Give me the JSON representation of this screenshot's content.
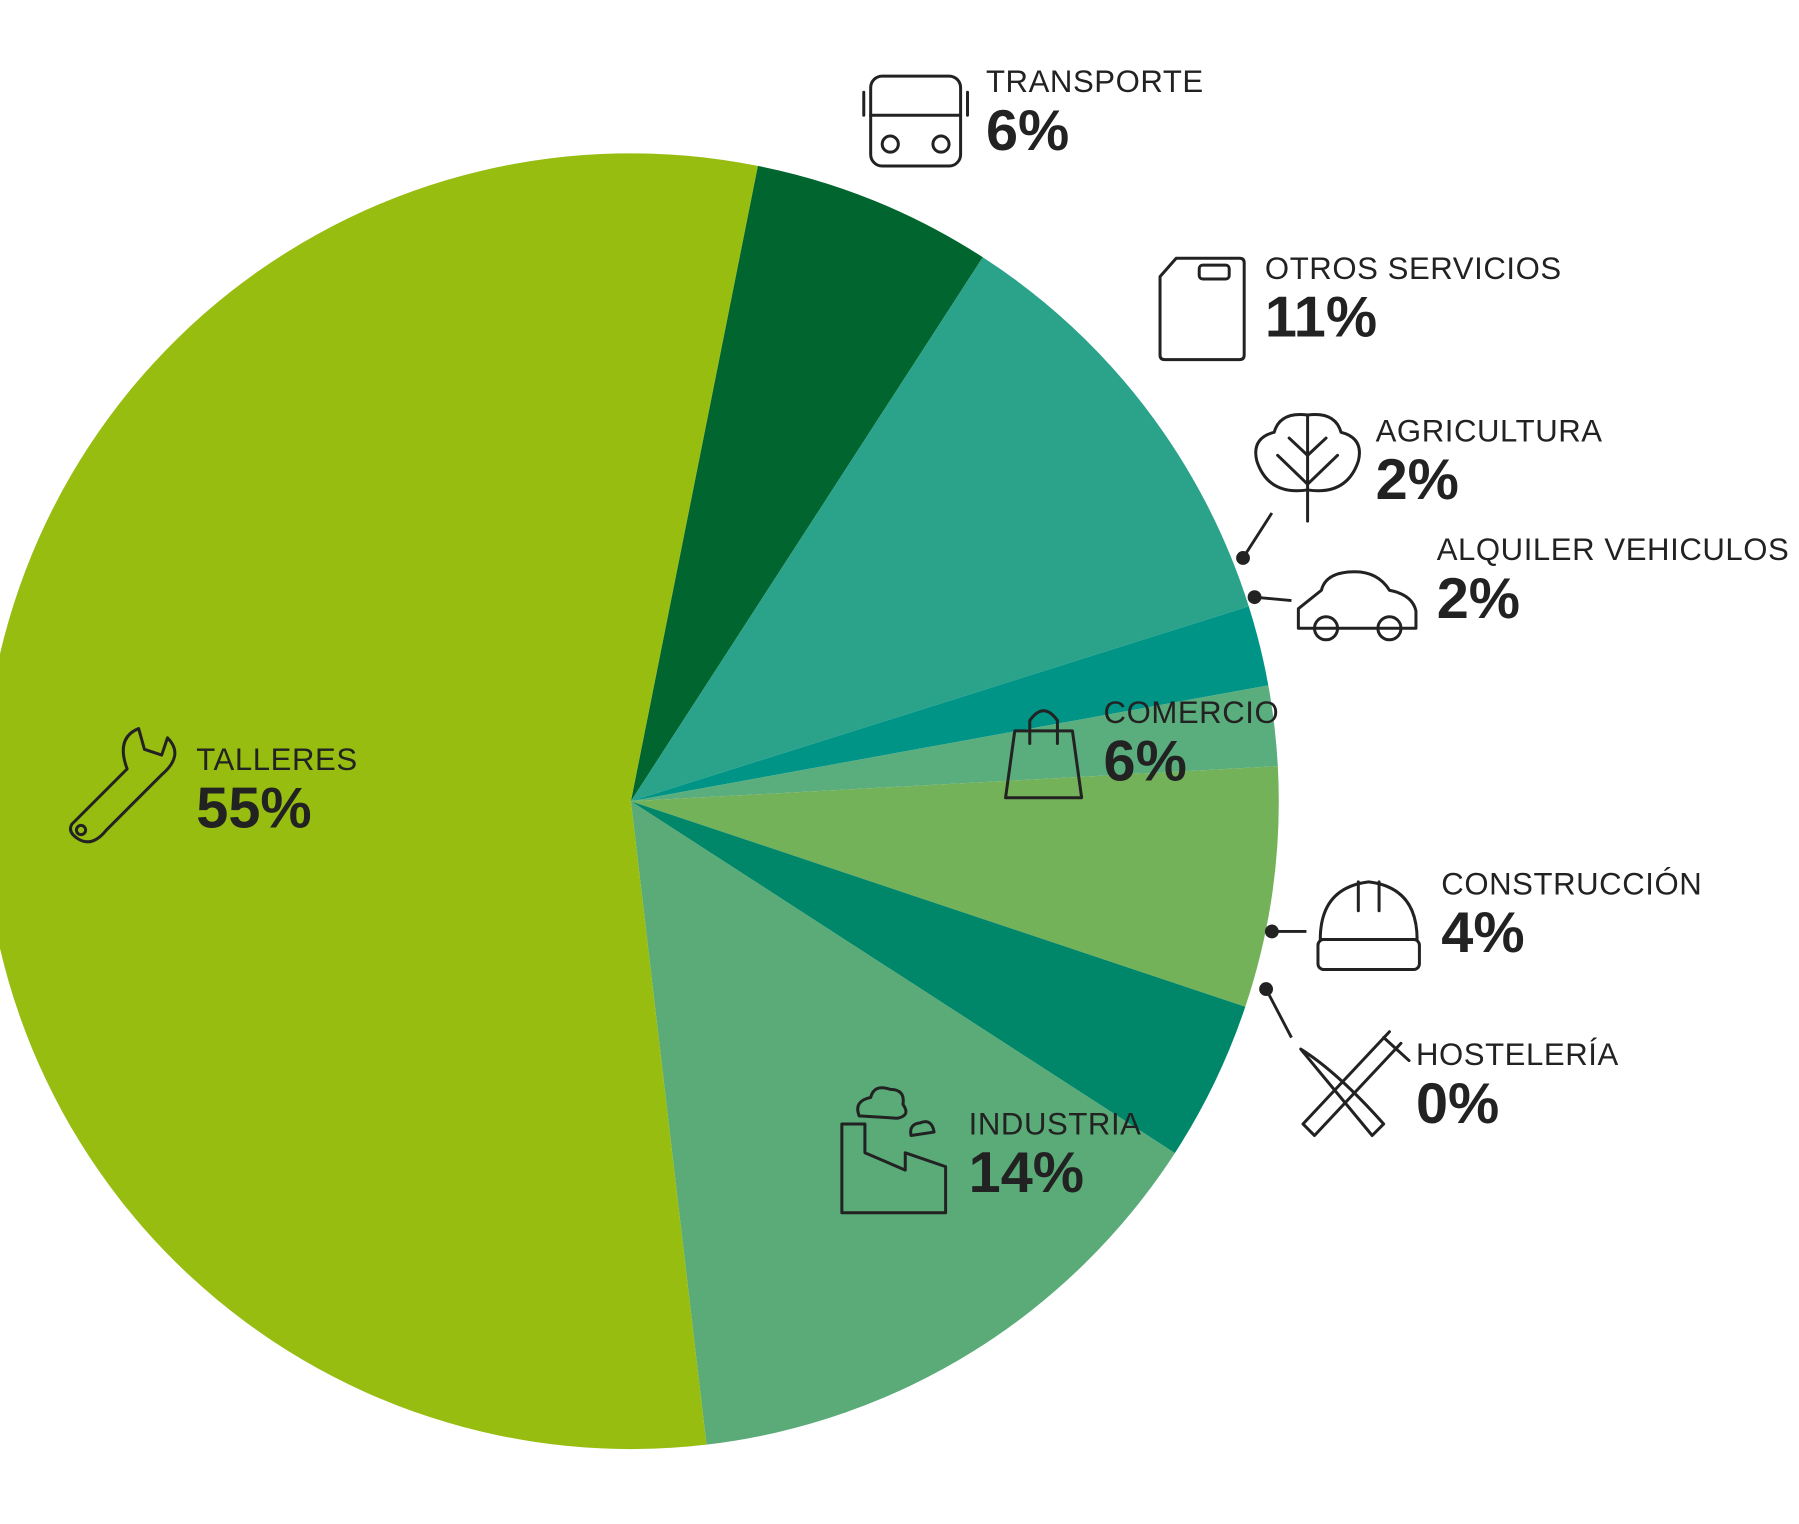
{
  "chart_data": {
    "type": "pie",
    "categories": [
      "TRANSPORTE",
      "OTROS SERVICIOS",
      "AGRICULTURA",
      "ALQUILER VEHICULOS",
      "COMERCIO",
      "CONSTRUCCIÓN",
      "HOSTELERÍA",
      "INDUSTRIA",
      "TALLERES"
    ],
    "values": [
      6,
      11,
      2,
      2,
      6,
      4,
      0,
      14,
      55
    ],
    "value_labels": [
      "6%",
      "11%",
      "2%",
      "2%",
      "6%",
      "4%",
      "0%",
      "14%",
      "55%"
    ],
    "colors": [
      "#00652e",
      "#2ba38b",
      "#009487",
      "#5aad7c",
      "#74b25a",
      "#00876a",
      "#00652e",
      "#5aab78",
      "#97bd11"
    ]
  }
}
